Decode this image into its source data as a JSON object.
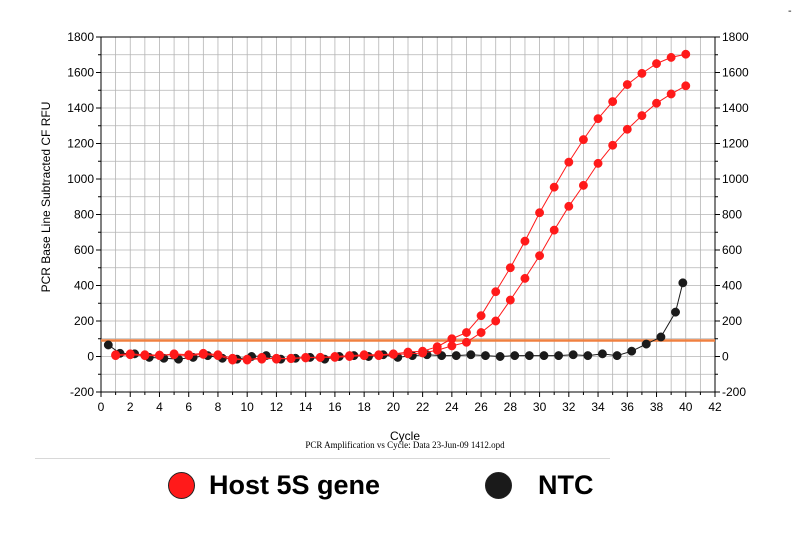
{
  "chart_data": {
    "type": "line",
    "title": "",
    "subtitle": "PCR Amplification vs Cycle: Data 23-Jun-09 1412.opd",
    "xlabel": "Cycle",
    "ylabel": "PCR Base Line Subtracted CF RFU",
    "xlim": [
      0,
      42
    ],
    "ylim": [
      -200,
      1800
    ],
    "x_ticks": [
      "0",
      "2",
      "4",
      "6",
      "8",
      "10",
      "12",
      "14",
      "16",
      "18",
      "20",
      "22",
      "24",
      "26",
      "28",
      "30",
      "32",
      "34",
      "36",
      "38",
      "40",
      "42"
    ],
    "y_ticks": [
      "-200",
      "0",
      "200",
      "400",
      "600",
      "800",
      "1000",
      "1200",
      "1400",
      "1600",
      "1800"
    ],
    "y_tick_values": [
      -200,
      0,
      200,
      400,
      600,
      800,
      1000,
      1200,
      1400,
      1600,
      1800
    ],
    "grid": true,
    "right_axis": true,
    "threshold": 90,
    "colors": {
      "host": "#ff1a1a",
      "ntc": "#1a1a1a",
      "threshold": "#f08040",
      "grid": "#b4b4b4"
    },
    "series": [
      {
        "group": "host",
        "x": [
          1,
          2,
          3,
          4,
          5,
          6,
          7,
          8,
          9,
          10,
          11,
          12,
          13,
          14,
          15,
          16,
          17,
          18,
          19,
          20,
          21,
          22,
          23,
          24,
          25,
          26,
          27,
          28,
          29,
          30,
          31,
          32,
          33,
          34,
          35,
          36,
          37,
          38,
          39,
          40
        ],
        "y": [
          10,
          15,
          10,
          8,
          10,
          5,
          12,
          5,
          -20,
          -15,
          -15,
          -10,
          -12,
          -8,
          -5,
          -5,
          0,
          5,
          5,
          12,
          15,
          20,
          35,
          60,
          80,
          135,
          200,
          318,
          440,
          568,
          712,
          846,
          964,
          1088,
          1190,
          1280,
          1357,
          1427,
          1479,
          1525
        ]
      },
      {
        "group": "host",
        "x": [
          1,
          2,
          3,
          4,
          5,
          6,
          7,
          8,
          9,
          10,
          11,
          12,
          13,
          14,
          15,
          16,
          17,
          18,
          19,
          20,
          21,
          22,
          23,
          24,
          25,
          26,
          27,
          28,
          29,
          30,
          31,
          32,
          33,
          34,
          35,
          36,
          37,
          38,
          39,
          40
        ],
        "y": [
          5,
          10,
          5,
          5,
          15,
          10,
          18,
          10,
          -10,
          -20,
          -5,
          -15,
          -10,
          -5,
          -5,
          0,
          5,
          10,
          10,
          15,
          25,
          30,
          55,
          100,
          135,
          230,
          365,
          500,
          650,
          810,
          954,
          1095,
          1222,
          1340,
          1436,
          1532,
          1595,
          1650,
          1685,
          1703
        ]
      },
      {
        "group": "ntc",
        "x": [
          0.5,
          1.3,
          2.3,
          3.3,
          4.3,
          5.3,
          6.3,
          7.3,
          8.3,
          9.3,
          10.3,
          11.3,
          12.3,
          13.3,
          14.3,
          15.3,
          16.3,
          17.3,
          18.3,
          19.3,
          20.3,
          21.3,
          22.3,
          23.3,
          24.3,
          25.3,
          26.3,
          27.3,
          28.3,
          29.3,
          30.3,
          31.3,
          32.3,
          33.3,
          34.3,
          35.3,
          36.3,
          37.3,
          38.3,
          39.3
        ],
        "y": [
          65,
          18,
          15,
          -5,
          -10,
          -15,
          -5,
          5,
          -10,
          -15,
          0,
          5,
          -15,
          -10,
          -5,
          -15,
          0,
          5,
          0,
          10,
          -5,
          5,
          10,
          5,
          5,
          10,
          5,
          0,
          5,
          5,
          5,
          5,
          10,
          5,
          15,
          5,
          30,
          70,
          110,
          250
        ]
      },
      {
        "group": "ntc",
        "x": [
          39.8
        ],
        "y": [
          415
        ]
      }
    ]
  },
  "legend": [
    {
      "label": "Host 5S gene",
      "color": "#ff1a1a"
    },
    {
      "label": "NTC",
      "color": "#1a1a1a"
    }
  ],
  "top_mark": "-"
}
